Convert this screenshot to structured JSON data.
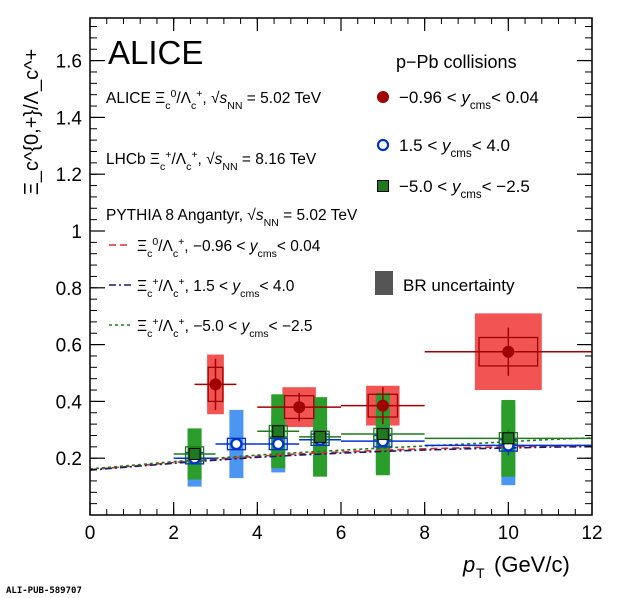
{
  "chart_data": {
    "type": "scatter",
    "title": "ALICE",
    "subtitle": "p−Pb collisions",
    "xlabel_main": "p",
    "xlabel_sub": "T",
    "xlabel_unit": "(GeV/c)",
    "ylabel": "Ξ_c^{0,+}/Λ_c^+",
    "xlim": [
      0,
      12
    ],
    "ylim": [
      0,
      1.75
    ],
    "xticks": [
      0,
      2,
      4,
      6,
      8,
      10,
      12
    ],
    "xtick_labels": [
      "0",
      "2",
      "4",
      "6",
      "8",
      "10",
      "12"
    ],
    "yticks": [
      0.2,
      0.4,
      0.6,
      0.8,
      1.0,
      1.2,
      1.4,
      1.6
    ],
    "ytick_labels": [
      "0.2",
      "0.4",
      "0.6",
      "0.8",
      "1",
      "1.2",
      "1.4",
      "1.6"
    ],
    "legend_header_alice": "ALICE Ξ_c^0/Λ_c^+, √s_NN = 5.02 TeV",
    "legend_header_lhcb": "LHCb Ξ_c^+/Λ_c^+, √s_NN = 8.16 TeV",
    "legend_header_pythia": "PYTHIA 8 Angantyr, √s_NN = 5.02 TeV",
    "legend_br": "BR uncertainty",
    "series": [
      {
        "name": "−0.96 < y_cms < 0.04",
        "experiment": "ALICE",
        "marker": "filled-circle",
        "color": "#a00000",
        "box_color": "#f25454",
        "x": [
          3.0,
          5.0,
          7.0,
          10.0
        ],
        "x_err": [
          0.5,
          1.0,
          1.0,
          2.0
        ],
        "y": [
          0.46,
          0.38,
          0.385,
          0.575
        ],
        "stat_err": [
          0.09,
          0.05,
          0.065,
          0.085
        ],
        "sys_err": [
          0.06,
          0.04,
          0.04,
          0.05
        ],
        "br_err": [
          0.105,
          0.07,
          0.07,
          0.135
        ]
      },
      {
        "name": "1.5 < y_cms < 4.0",
        "experiment": "LHCb",
        "marker": "open-circle",
        "color": "#0033cc",
        "box_color": "#4a96f0",
        "x": [
          2.5,
          3.5,
          4.5,
          5.5,
          7.0,
          10.0
        ],
        "x_err": [
          0.5,
          0.5,
          0.5,
          0.5,
          1.0,
          2.0
        ],
        "y": [
          0.2,
          0.25,
          0.25,
          0.265,
          0.26,
          0.245
        ],
        "stat_err": [
          0.02,
          0.015,
          0.015,
          0.02,
          0.02,
          0.035
        ],
        "sys_err": [
          0.02,
          0.02,
          0.02,
          0.02,
          0.02,
          0.02
        ],
        "br_err": [
          0.1,
          0.12,
          0.1,
          0.11,
          0.11,
          0.14
        ]
      },
      {
        "name": "−5.0 < y_cms < −2.5",
        "experiment": "LHCb",
        "marker": "filled-square",
        "color": "#1f7a1f",
        "box_color": "#2a9d2a",
        "x": [
          2.5,
          4.5,
          5.5,
          7.0,
          10.0
        ],
        "x_err": [
          0.5,
          0.5,
          0.5,
          1.0,
          2.0
        ],
        "y": [
          0.215,
          0.295,
          0.275,
          0.285,
          0.27
        ],
        "stat_err": [
          0.02,
          0.015,
          0.02,
          0.02,
          0.03
        ],
        "sys_err": [
          0.025,
          0.02,
          0.02,
          0.02,
          0.02
        ],
        "br_err": [
          0.09,
          0.13,
          0.14,
          0.145,
          0.135
        ]
      }
    ],
    "models": [
      {
        "name": "Ξ_c^0/Λ_c^+, −0.96 < y_cms < 0.04",
        "color": "#e03030",
        "dash": "dashed",
        "x": [
          0,
          1,
          2,
          3,
          4,
          5,
          6,
          7,
          8,
          9,
          10,
          11,
          12
        ],
        "y": [
          0.16,
          0.172,
          0.185,
          0.197,
          0.207,
          0.215,
          0.222,
          0.228,
          0.233,
          0.237,
          0.24,
          0.243,
          0.245
        ]
      },
      {
        "name": "Ξ_c^+/Λ_c^+, 1.5 < y_cms < 4.0",
        "color": "#1a1a6e",
        "dash": "dashdot",
        "x": [
          0,
          1,
          2,
          3,
          4,
          5,
          6,
          7,
          8,
          9,
          10,
          11,
          12
        ],
        "y": [
          0.158,
          0.17,
          0.182,
          0.193,
          0.203,
          0.211,
          0.218,
          0.224,
          0.229,
          0.233,
          0.236,
          0.239,
          0.241
        ]
      },
      {
        "name": "Ξ_c^+/Λ_c^+, −5.0 < y_cms < −2.5",
        "color": "#1f7a1f",
        "dash": "dotted",
        "x": [
          0,
          1,
          2,
          3,
          4,
          5,
          6,
          7,
          8,
          9,
          10,
          11,
          12
        ],
        "y": [
          0.162,
          0.175,
          0.188,
          0.2,
          0.211,
          0.22,
          0.228,
          0.236,
          0.243,
          0.25,
          0.258,
          0.266,
          0.272
        ]
      }
    ],
    "footer": "ALI-PUB-589707"
  }
}
